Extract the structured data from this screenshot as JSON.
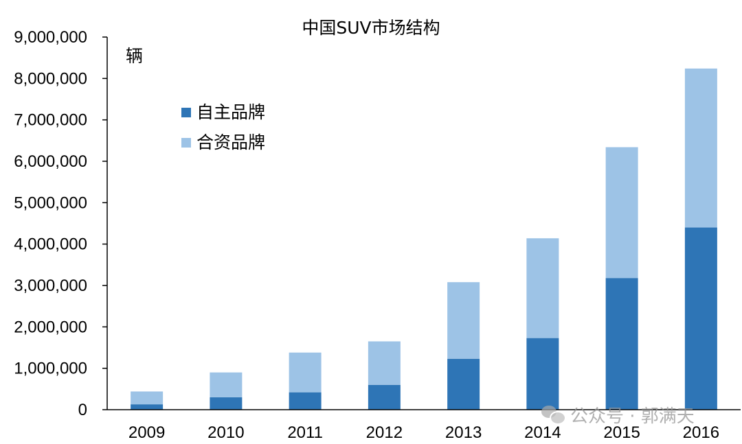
{
  "chart_data": {
    "type": "bar",
    "stacked": true,
    "title": "中国SUV市场结构",
    "ylabel": "辆",
    "xlabel": "",
    "categories": [
      "2009",
      "2010",
      "2011",
      "2012",
      "2013",
      "2014",
      "2015",
      "2016"
    ],
    "series": [
      {
        "name": "自主品牌",
        "color": "#2E75B6",
        "values": [
          130000,
          300000,
          420000,
          600000,
          1230000,
          1730000,
          3180000,
          4400000
        ]
      },
      {
        "name": "合资品牌",
        "color": "#9DC3E6",
        "values": [
          310000,
          600000,
          960000,
          1050000,
          1850000,
          2410000,
          3160000,
          3840000
        ]
      }
    ],
    "ylim": [
      0,
      9000000
    ],
    "yticks": [
      0,
      1000000,
      2000000,
      3000000,
      4000000,
      5000000,
      6000000,
      7000000,
      8000000,
      9000000
    ],
    "ytick_labels": [
      "0",
      "1,000,000",
      "2,000,000",
      "3,000,000",
      "4,000,000",
      "5,000,000",
      "6,000,000",
      "7,000,000",
      "8,000,000",
      "9,000,000"
    ],
    "grid": false,
    "legend_position": "top-left"
  },
  "watermark": {
    "icon": "wechat-icon",
    "text": "公众号 · 郭满天"
  }
}
